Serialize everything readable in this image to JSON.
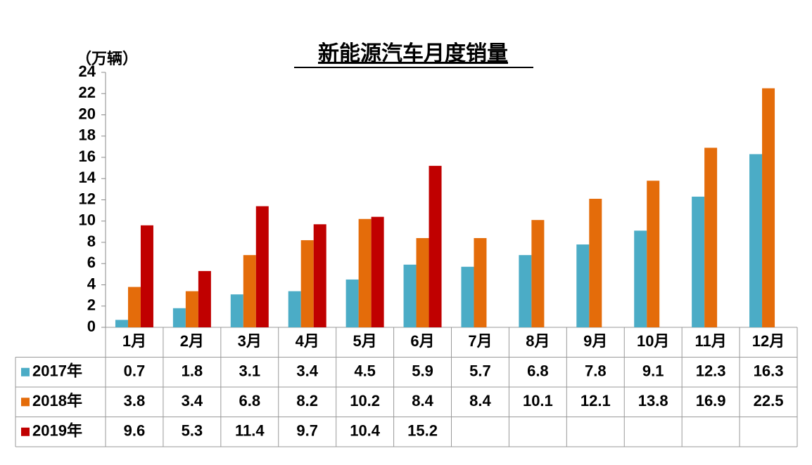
{
  "chart_data": {
    "type": "bar",
    "title": "新能源汽车月度销量",
    "y_label": "（万辆）",
    "categories": [
      "1月",
      "2月",
      "3月",
      "4月",
      "5月",
      "6月",
      "7月",
      "8月",
      "9月",
      "10月",
      "11月",
      "12月"
    ],
    "series": [
      {
        "name": "2017年",
        "color": "#4bacc6",
        "values": [
          0.7,
          1.8,
          3.1,
          3.4,
          4.5,
          5.9,
          5.7,
          6.8,
          7.8,
          9.1,
          12.3,
          16.3
        ]
      },
      {
        "name": "2018年",
        "color": "#e46c0a",
        "values": [
          3.8,
          3.4,
          6.8,
          8.2,
          10.2,
          8.4,
          8.4,
          10.1,
          12.1,
          13.8,
          16.9,
          22.5
        ]
      },
      {
        "name": "2019年",
        "color": "#c00000",
        "values": [
          9.6,
          5.3,
          11.4,
          9.7,
          10.4,
          15.2,
          null,
          null,
          null,
          null,
          null,
          null
        ]
      }
    ],
    "ylim": [
      0,
      24
    ],
    "yticks": [
      0,
      2,
      4,
      6,
      8,
      10,
      12,
      14,
      16,
      18,
      20,
      22,
      24
    ],
    "grid": false
  }
}
